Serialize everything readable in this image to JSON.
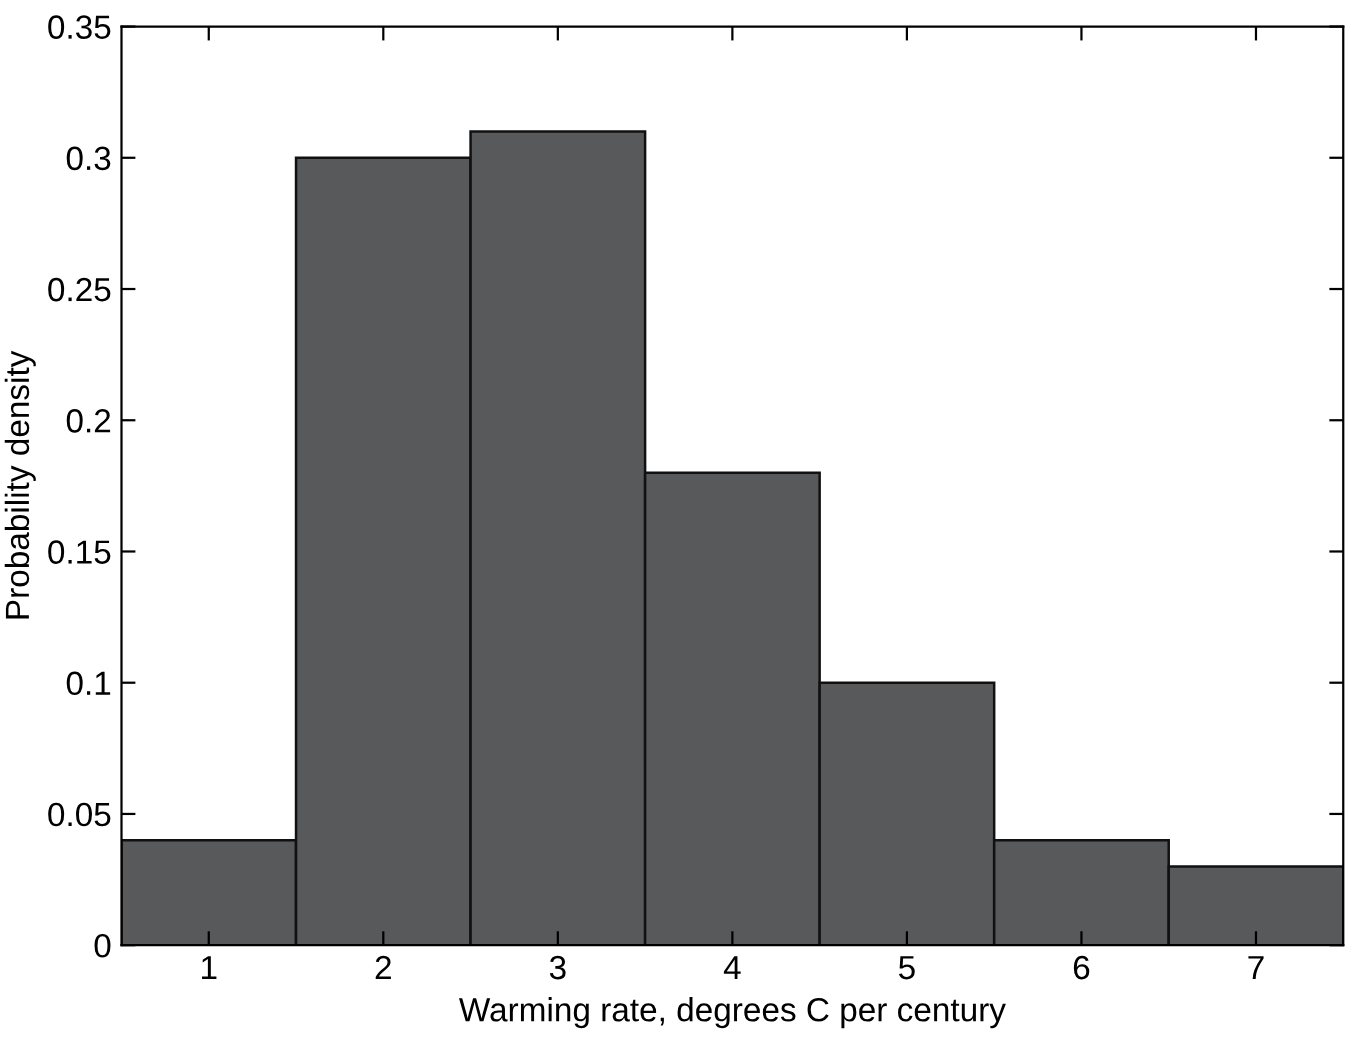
{
  "chart_data": {
    "type": "histogram",
    "xlabel": "Warming rate, degrees C per century",
    "ylabel": "Probability density",
    "bins": [
      0.5,
      1.5,
      2.5,
      3.5,
      4.5,
      5.5,
      6.5,
      7.5
    ],
    "values": [
      0.04,
      0.3,
      0.31,
      0.18,
      0.1,
      0.04,
      0.03
    ],
    "color": "#58595b",
    "xlim": [
      0.5,
      7.5
    ],
    "xticks": [
      1,
      2,
      3,
      4,
      5,
      6,
      7
    ],
    "ylim": [
      0,
      0.35
    ],
    "yticks": [
      0,
      0.05,
      0.1,
      0.15,
      0.2,
      0.25,
      0.3,
      0.35
    ],
    "grid": false
  }
}
